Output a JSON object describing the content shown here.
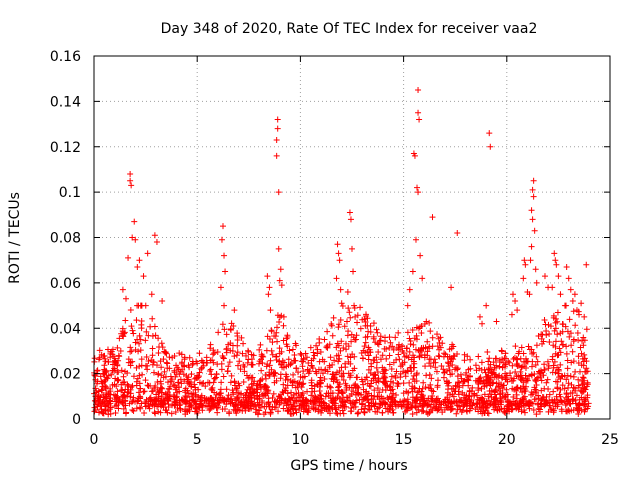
{
  "chart_data": {
    "type": "scatter",
    "title": "Day 348 of 2020, Rate Of TEC Index for receiver vaa2",
    "xlabel": "GPS time / hours",
    "ylabel": "ROTI / TECUs",
    "xlim": [
      0,
      25
    ],
    "ylim": [
      0,
      0.16
    ],
    "x_ticks": [
      "0",
      "5",
      "10",
      "15",
      "20",
      "25"
    ],
    "y_ticks": [
      "0",
      "0.02",
      "0.04",
      "0.06",
      "0.08",
      "0.1",
      "0.12",
      "0.14",
      "0.16"
    ],
    "grid": true,
    "marker": "+",
    "color": "#ff0000",
    "series": [
      {
        "name": "ROTI",
        "points": [
          [
            1.75,
            0.108
          ],
          [
            1.75,
            0.105
          ],
          [
            1.8,
            0.103
          ],
          [
            1.85,
            0.08
          ],
          [
            1.95,
            0.087
          ],
          [
            2.0,
            0.079
          ],
          [
            1.55,
            0.053
          ],
          [
            1.4,
            0.057
          ],
          [
            2.2,
            0.07
          ],
          [
            2.4,
            0.063
          ],
          [
            2.6,
            0.073
          ],
          [
            2.8,
            0.055
          ],
          [
            2.95,
            0.081
          ],
          [
            3.05,
            0.078
          ],
          [
            3.3,
            0.052
          ],
          [
            2.1,
            0.067
          ],
          [
            1.65,
            0.071
          ],
          [
            6.25,
            0.085
          ],
          [
            6.2,
            0.079
          ],
          [
            6.3,
            0.072
          ],
          [
            6.35,
            0.065
          ],
          [
            6.15,
            0.058
          ],
          [
            6.3,
            0.05
          ],
          [
            6.8,
            0.048
          ],
          [
            6.75,
            0.041
          ],
          [
            8.4,
            0.063
          ],
          [
            8.5,
            0.058
          ],
          [
            8.45,
            0.055
          ],
          [
            8.55,
            0.048
          ],
          [
            8.9,
            0.132
          ],
          [
            8.9,
            0.128
          ],
          [
            8.85,
            0.123
          ],
          [
            8.85,
            0.116
          ],
          [
            8.95,
            0.1
          ],
          [
            8.95,
            0.075
          ],
          [
            9.05,
            0.066
          ],
          [
            9.2,
            0.045
          ],
          [
            9.1,
            0.059
          ],
          [
            9.0,
            0.061
          ],
          [
            11.8,
            0.077
          ],
          [
            11.85,
            0.073
          ],
          [
            11.9,
            0.07
          ],
          [
            11.75,
            0.062
          ],
          [
            11.95,
            0.057
          ],
          [
            12.0,
            0.051
          ],
          [
            12.4,
            0.091
          ],
          [
            12.45,
            0.088
          ],
          [
            12.5,
            0.075
          ],
          [
            12.55,
            0.065
          ],
          [
            12.3,
            0.056
          ],
          [
            12.6,
            0.05
          ],
          [
            12.65,
            0.045
          ],
          [
            13.1,
            0.044
          ],
          [
            13.4,
            0.041
          ],
          [
            15.5,
            0.117
          ],
          [
            15.55,
            0.116
          ],
          [
            15.7,
            0.145
          ],
          [
            15.7,
            0.135
          ],
          [
            15.75,
            0.132
          ],
          [
            15.65,
            0.102
          ],
          [
            15.7,
            0.1
          ],
          [
            15.6,
            0.079
          ],
          [
            15.8,
            0.072
          ],
          [
            15.45,
            0.065
          ],
          [
            15.3,
            0.057
          ],
          [
            15.2,
            0.05
          ],
          [
            15.9,
            0.062
          ],
          [
            16.4,
            0.089
          ],
          [
            16.1,
            0.043
          ],
          [
            17.3,
            0.058
          ],
          [
            17.6,
            0.082
          ],
          [
            18.7,
            0.045
          ],
          [
            18.8,
            0.042
          ],
          [
            19.15,
            0.126
          ],
          [
            19.2,
            0.12
          ],
          [
            19.0,
            0.05
          ],
          [
            19.5,
            0.043
          ],
          [
            20.3,
            0.055
          ],
          [
            20.4,
            0.052
          ],
          [
            20.5,
            0.048
          ],
          [
            20.25,
            0.046
          ],
          [
            20.85,
            0.07
          ],
          [
            20.9,
            0.068
          ],
          [
            20.8,
            0.062
          ],
          [
            21.0,
            0.056
          ],
          [
            21.3,
            0.105
          ],
          [
            21.25,
            0.101
          ],
          [
            21.3,
            0.098
          ],
          [
            21.2,
            0.092
          ],
          [
            21.25,
            0.088
          ],
          [
            21.35,
            0.083
          ],
          [
            21.2,
            0.076
          ],
          [
            21.15,
            0.07
          ],
          [
            21.4,
            0.066
          ],
          [
            21.45,
            0.06
          ],
          [
            21.1,
            0.055
          ],
          [
            21.85,
            0.063
          ],
          [
            22.0,
            0.058
          ],
          [
            22.3,
            0.073
          ],
          [
            22.35,
            0.07
          ],
          [
            22.4,
            0.068
          ],
          [
            22.5,
            0.063
          ],
          [
            22.2,
            0.058
          ],
          [
            22.6,
            0.055
          ],
          [
            22.9,
            0.067
          ],
          [
            23.0,
            0.062
          ],
          [
            23.1,
            0.057
          ],
          [
            23.2,
            0.052
          ],
          [
            23.3,
            0.055
          ],
          [
            23.4,
            0.048
          ],
          [
            23.5,
            0.046
          ],
          [
            23.6,
            0.051
          ],
          [
            23.75,
            0.045
          ],
          [
            23.85,
            0.068
          ]
        ]
      }
    ]
  }
}
